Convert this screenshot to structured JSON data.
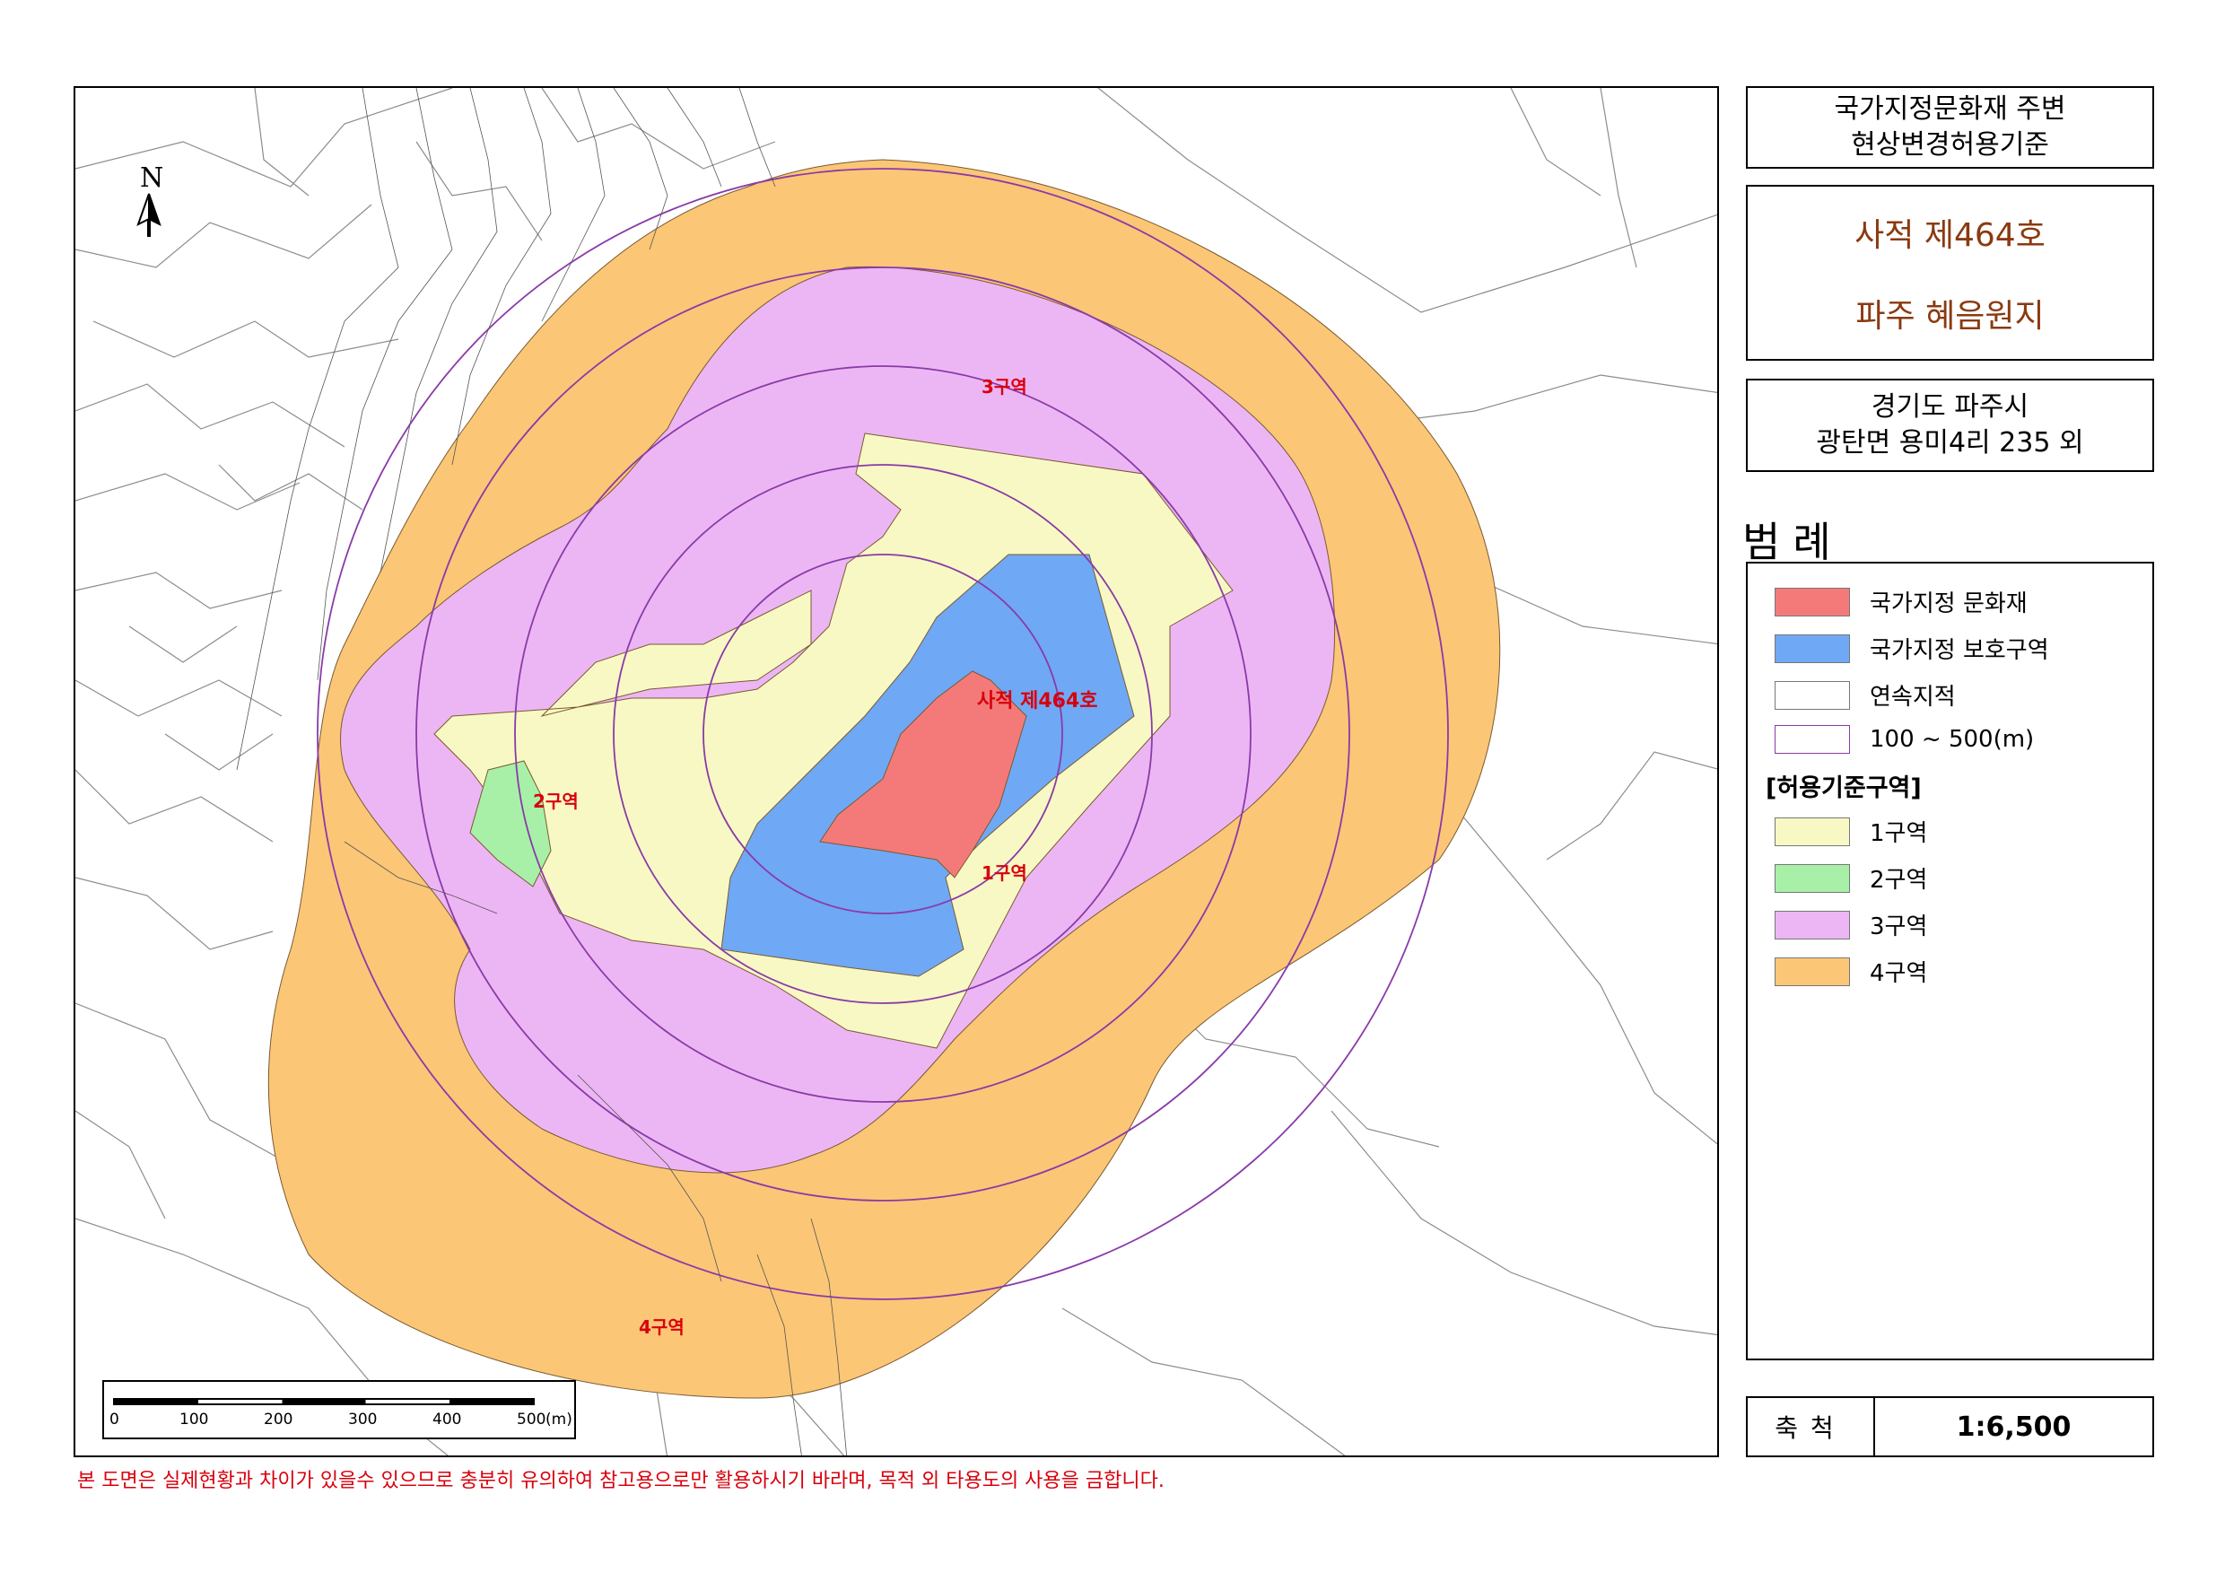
{
  "title": {
    "line1": "국가지정문화재 주변",
    "line2": "현상변경허용기준"
  },
  "heritage": {
    "designation": "사적 제464호",
    "name": "파주 혜음원지"
  },
  "location": {
    "line1": "경기도 파주시",
    "line2": "광탄면 용미4리 235 외"
  },
  "legend": {
    "title": "범례",
    "items": [
      {
        "label": "국가지정 문화재",
        "color": "#f47a7a"
      },
      {
        "label": "국가지정 보호구역",
        "color": "#6fa8f5"
      },
      {
        "label": "연속지적",
        "color": "#ffffff"
      },
      {
        "label": "100 ~ 500(m)",
        "color": "#ffffff",
        "border": "#8a3aa8"
      }
    ],
    "zone_header": "[허용기준구역]",
    "zones": [
      {
        "label": "1구역",
        "color": "#f8f8c4"
      },
      {
        "label": "2구역",
        "color": "#a8f0a8"
      },
      {
        "label": "3구역",
        "color": "#ecb6f4"
      },
      {
        "label": "4구역",
        "color": "#fbc676"
      }
    ]
  },
  "scale": {
    "label": "축척",
    "value": "1:6,500",
    "ticks": [
      "0",
      "100",
      "200",
      "300",
      "400",
      "500"
    ],
    "unit": "(m)"
  },
  "map": {
    "north_label": "N",
    "heritage_label": "사적 제464호",
    "zone_labels": [
      "1구역",
      "2구역",
      "3구역",
      "4구역"
    ],
    "zone_colors": {
      "zone4": "#fbc676",
      "zone3": "#ecb6f4",
      "zone1": "#f8f8c4",
      "zone2": "#a8f0a8",
      "protection": "#6fa8f5",
      "heritage": "#f47a7a",
      "ring": "#8a3aa8",
      "parcel": "#8c8c8c"
    }
  },
  "disclaimer": "본 도면은 실제현황과 차이가 있을수 있으므로 충분히 유의하여 참고용으로만 활용하시기 바라며, 목적 외 타용도의 사용을 금합니다."
}
